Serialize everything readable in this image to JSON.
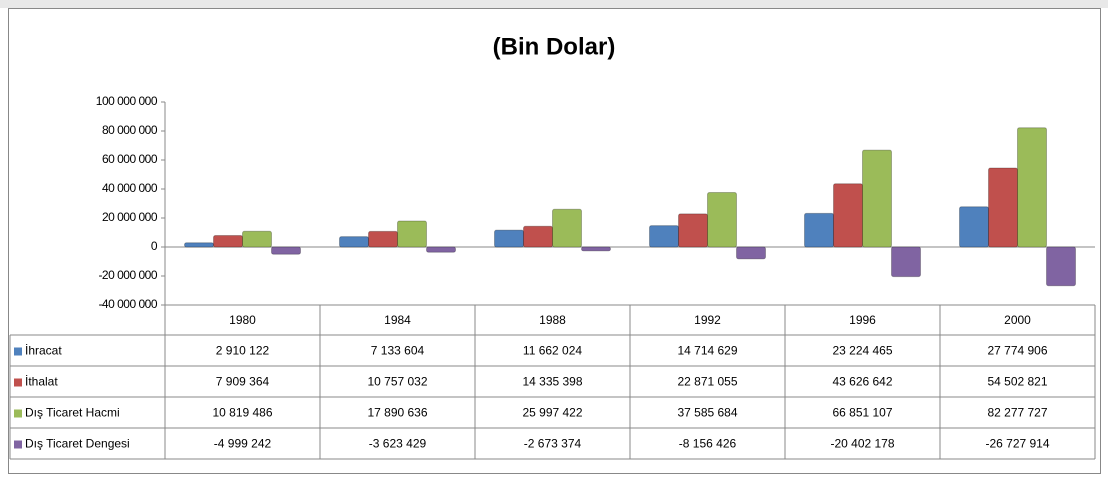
{
  "chart_data": {
    "type": "bar",
    "title": "(Bin Dolar)",
    "categories": [
      "1980",
      "1984",
      "1988",
      "1992",
      "1996",
      "2000"
    ],
    "series": [
      {
        "name": "İhracat",
        "color": "#4f81bd",
        "values": [
          2910122,
          7133604,
          11662024,
          14714629,
          23224465,
          27774906
        ],
        "value_labels": [
          "2 910 122",
          "7 133 604",
          "11 662 024",
          "14 714 629",
          "23 224 465",
          "27 774 906"
        ]
      },
      {
        "name": "İthalat",
        "color": "#c0504d",
        "values": [
          7909364,
          10757032,
          14335398,
          22871055,
          43626642,
          54502821
        ],
        "value_labels": [
          "7 909 364",
          "10 757 032",
          "14 335 398",
          "22 871 055",
          "43 626 642",
          "54 502 821"
        ]
      },
      {
        "name": "Dış Ticaret Hacmi",
        "color": "#9bbb59",
        "values": [
          10819486,
          17890636,
          25997422,
          37585684,
          66851107,
          82277727
        ],
        "value_labels": [
          "10 819 486",
          "17 890 636",
          "25 997 422",
          "37 585 684",
          "66 851 107",
          "82 277 727"
        ]
      },
      {
        "name": "Dış Ticaret Dengesi",
        "color": "#8064a2",
        "values": [
          -4999242,
          -3623429,
          -2673374,
          -8156426,
          -20402178,
          -26727914
        ],
        "value_labels": [
          "-4 999 242",
          "-3 623 429",
          "-2 673 374",
          "-8 156 426",
          "-20 402 178",
          "-26 727 914"
        ]
      }
    ],
    "ylim": [
      -40000000,
      100000000
    ],
    "yticks": [
      {
        "value": -40000000,
        "label": "-40 000 000"
      },
      {
        "value": -20000000,
        "label": "-20 000 000"
      },
      0,
      {
        "value": 20000000,
        "label": "20 000 000"
      },
      {
        "value": 40000000,
        "label": "40 000 000"
      },
      {
        "value": 60000000,
        "label": "60 000 000"
      },
      {
        "value": 80000000,
        "label": "80 000 000"
      },
      {
        "value": 100000000,
        "label": "100 000 000"
      }
    ],
    "grid": false
  }
}
